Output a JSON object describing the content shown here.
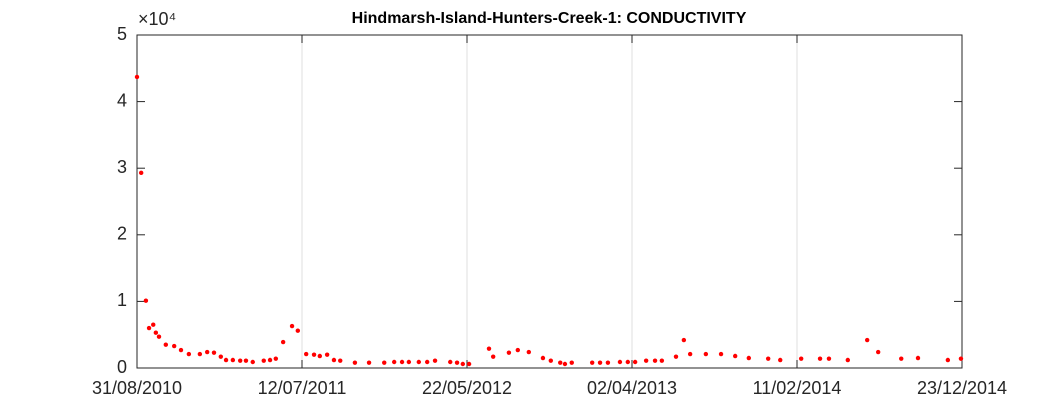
{
  "chart_data": {
    "type": "scatter",
    "title": "Hindmarsh-Island-Hunters-Creek-1: CONDUCTIVITY",
    "y_multiplier": "×10⁴",
    "color": "#ff0000",
    "grid": "x",
    "xlim": [
      "31/08/2010",
      "23/12/2014"
    ],
    "xticks": [
      "31/08/2010",
      "12/07/2011",
      "22/05/2012",
      "02/04/2013",
      "11/02/2014",
      "23/12/2014"
    ],
    "ylim": [
      0,
      50000
    ],
    "yticks": [
      {
        "value": 0,
        "label": "0"
      },
      {
        "value": 10000,
        "label": "1"
      },
      {
        "value": 20000,
        "label": "2"
      },
      {
        "value": 30000,
        "label": "3"
      },
      {
        "value": 40000,
        "label": "4"
      },
      {
        "value": 50000,
        "label": "5"
      }
    ],
    "x": [
      "31/08/2010",
      "08/09/2010",
      "17/09/2010",
      "23/09/2010",
      "01/10/2010",
      "06/10/2010",
      "12/10/2010",
      "25/10/2010",
      "10/11/2010",
      "23/11/2010",
      "08/12/2010",
      "29/12/2010",
      "12/01/2011",
      "25/01/2011",
      "07/02/2011",
      "17/02/2011",
      "02/03/2011",
      "16/03/2011",
      "27/03/2011",
      "09/04/2011",
      "30/04/2011",
      "12/05/2011",
      "23/05/2011",
      "06/06/2011",
      "23/06/2011",
      "04/07/2011",
      "20/07/2011",
      "04/08/2011",
      "15/08/2011",
      "29/08/2011",
      "11/09/2011",
      "23/09/2011",
      "21/10/2011",
      "17/11/2011",
      "16/12/2011",
      "04/01/2012",
      "19/01/2012",
      "01/02/2012",
      "20/02/2012",
      "07/03/2012",
      "22/03/2012",
      "20/04/2012",
      "03/05/2012",
      "14/05/2012",
      "26/05/2012",
      "03/07/2012",
      "11/07/2012",
      "10/08/2012",
      "27/08/2012",
      "17/09/2012",
      "14/10/2012",
      "29/10/2012",
      "16/11/2012",
      "25/11/2012",
      "08/12/2012",
      "16/01/2013",
      "31/01/2013",
      "15/02/2013",
      "10/03/2013",
      "25/03/2013",
      "08/04/2013",
      "29/04/2013",
      "16/05/2013",
      "29/05/2013",
      "25/06/2013",
      "10/07/2013",
      "22/07/2013",
      "21/08/2013",
      "19/09/2013",
      "16/10/2013",
      "11/11/2013",
      "18/12/2013",
      "10/01/2014",
      "19/02/2014",
      "27/03/2014",
      "13/04/2014",
      "19/05/2014",
      "25/06/2014",
      "16/07/2014",
      "29/08/2014",
      "30/09/2014",
      "26/11/2014",
      "21/12/2014"
    ],
    "values": [
      43700,
      29300,
      10100,
      6000,
      6500,
      5300,
      4700,
      3500,
      3300,
      2700,
      2100,
      2100,
      2400,
      2300,
      1700,
      1200,
      1200,
      1100,
      1100,
      900,
      1100,
      1200,
      1400,
      3900,
      6300,
      5600,
      2100,
      2000,
      1800,
      2000,
      1200,
      1100,
      800,
      800,
      800,
      900,
      900,
      900,
      900,
      900,
      1100,
      900,
      800,
      600,
      600,
      2900,
      1700,
      2300,
      2700,
      2400,
      1500,
      1100,
      800,
      600,
      800,
      800,
      800,
      800,
      900,
      900,
      900,
      1100,
      1100,
      1100,
      1700,
      4200,
      2100,
      2100,
      2100,
      1800,
      1500,
      1400,
      1200,
      1400,
      1400,
      1400,
      1200,
      4200,
      2400,
      1400,
      1500,
      1200,
      1400
    ]
  }
}
